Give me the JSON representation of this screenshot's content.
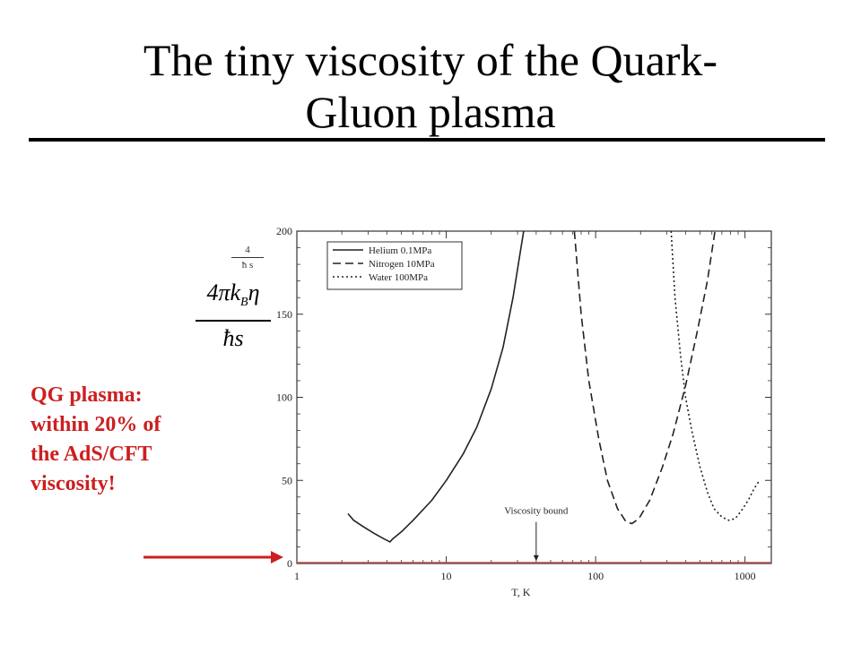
{
  "slide": {
    "title_line1": "The tiny viscosity of the Quark-",
    "title_line2": "Gluon plasma",
    "annotation_lines": [
      "QG plasma:",
      "within 20% of",
      "the AdS/CFT",
      "viscosity!"
    ],
    "ylabel_small_top": "4",
    "ylabel_small_bottom": "ħ s",
    "ylabel_formula_top": "4πk",
    "ylabel_formula_sub": "B",
    "ylabel_formula_eta": "η",
    "ylabel_formula_bottom": "ħs"
  },
  "colors": {
    "annotation": "#cc1f1f",
    "bound_line": "#c0504d",
    "series": "#222222"
  },
  "chart_data": {
    "type": "line",
    "x_scale": "log",
    "xlim": [
      1,
      1500
    ],
    "ylim": [
      0,
      200
    ],
    "xlabel": "T, K",
    "x_ticks": [
      1,
      10,
      100,
      1000
    ],
    "y_ticks": [
      0,
      50,
      100,
      150,
      200
    ],
    "legend_position": "top-left",
    "annotation_text": "Viscosity bound",
    "annotation_x": 40,
    "bound_value": 0,
    "series": [
      {
        "name": "Helium 0.1MPa",
        "dash": "solid",
        "points": [
          [
            2.2,
            30
          ],
          [
            2.4,
            26
          ],
          [
            2.8,
            22
          ],
          [
            3.3,
            18
          ],
          [
            3.8,
            15
          ],
          [
            4.2,
            13
          ],
          [
            4.4,
            15
          ],
          [
            5,
            19
          ],
          [
            6,
            26
          ],
          [
            8,
            38
          ],
          [
            10,
            50
          ],
          [
            13,
            66
          ],
          [
            16,
            82
          ],
          [
            20,
            105
          ],
          [
            24,
            130
          ],
          [
            28,
            160
          ],
          [
            31,
            185
          ],
          [
            33,
            200
          ]
        ]
      },
      {
        "name": "Nitrogen 10MPa",
        "dash": "dashed",
        "points": [
          [
            72,
            200
          ],
          [
            80,
            150
          ],
          [
            90,
            110
          ],
          [
            105,
            75
          ],
          [
            120,
            50
          ],
          [
            140,
            33
          ],
          [
            160,
            25
          ],
          [
            175,
            24
          ],
          [
            195,
            27
          ],
          [
            230,
            38
          ],
          [
            280,
            58
          ],
          [
            330,
            78
          ],
          [
            400,
            107
          ],
          [
            480,
            140
          ],
          [
            560,
            170
          ],
          [
            630,
            200
          ]
        ]
      },
      {
        "name": "Water 100MPa",
        "dash": "dotted",
        "points": [
          [
            320,
            200
          ],
          [
            340,
            160
          ],
          [
            370,
            125
          ],
          [
            400,
            100
          ],
          [
            440,
            80
          ],
          [
            500,
            58
          ],
          [
            560,
            43
          ],
          [
            620,
            33
          ],
          [
            700,
            28
          ],
          [
            780,
            26
          ],
          [
            860,
            27
          ],
          [
            950,
            32
          ],
          [
            1050,
            38
          ],
          [
            1150,
            45
          ],
          [
            1250,
            50
          ]
        ]
      }
    ]
  }
}
